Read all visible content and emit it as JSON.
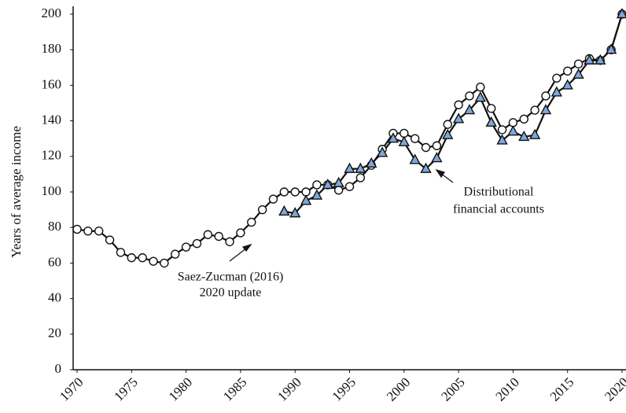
{
  "chart_data": {
    "type": "line",
    "y_label": "Years of average income",
    "x": [
      1970,
      1971,
      1972,
      1973,
      1974,
      1975,
      1976,
      1977,
      1978,
      1979,
      1980,
      1981,
      1982,
      1983,
      1984,
      1985,
      1986,
      1987,
      1988,
      1989,
      1990,
      1991,
      1992,
      1993,
      1994,
      1995,
      1996,
      1997,
      1998,
      1999,
      2000,
      2001,
      2002,
      2003,
      2004,
      2005,
      2006,
      2007,
      2008,
      2009,
      2010,
      2011,
      2012,
      2013,
      2014,
      2015,
      2016,
      2017,
      2018,
      2019,
      2020
    ],
    "series": [
      {
        "marker": "circle",
        "color": "#ffffff",
        "values": [
          79,
          78,
          78,
          73,
          66,
          63,
          63,
          61,
          60,
          65,
          69,
          71,
          76,
          75,
          72,
          77,
          83,
          90,
          96,
          100,
          100,
          100,
          104,
          104,
          101,
          103,
          108,
          115,
          124,
          133,
          133,
          130,
          125,
          126,
          138,
          149,
          154,
          159,
          147,
          135,
          139,
          141,
          146,
          154,
          164,
          168,
          172,
          175,
          174,
          180,
          200
        ]
      },
      {
        "marker": "triangle",
        "color": "#7fa7d9",
        "values": [
          null,
          null,
          null,
          null,
          null,
          null,
          null,
          null,
          null,
          null,
          null,
          null,
          null,
          null,
          null,
          null,
          null,
          null,
          null,
          89,
          88,
          95,
          98,
          104,
          105,
          113,
          113,
          116,
          122,
          130,
          128,
          118,
          113,
          119,
          132,
          141,
          146,
          153,
          139,
          129,
          134,
          131,
          132,
          146,
          156,
          160,
          166,
          174,
          174,
          180,
          200
        ]
      }
    ],
    "annotations": [
      {
        "lines": [
          "Saez-Zucman (2016)",
          "2020 update"
        ]
      },
      {
        "lines": [
          "Distributional",
          "financial accounts"
        ]
      }
    ],
    "xlim": [
      1970,
      2020
    ],
    "xticks": [
      1970,
      1975,
      1980,
      1985,
      1990,
      1995,
      2000,
      2005,
      2010,
      2015,
      2020
    ],
    "ylim": [
      0,
      200
    ],
    "yticks": [
      0,
      20,
      40,
      60,
      80,
      100,
      120,
      140,
      160,
      180,
      200
    ]
  }
}
